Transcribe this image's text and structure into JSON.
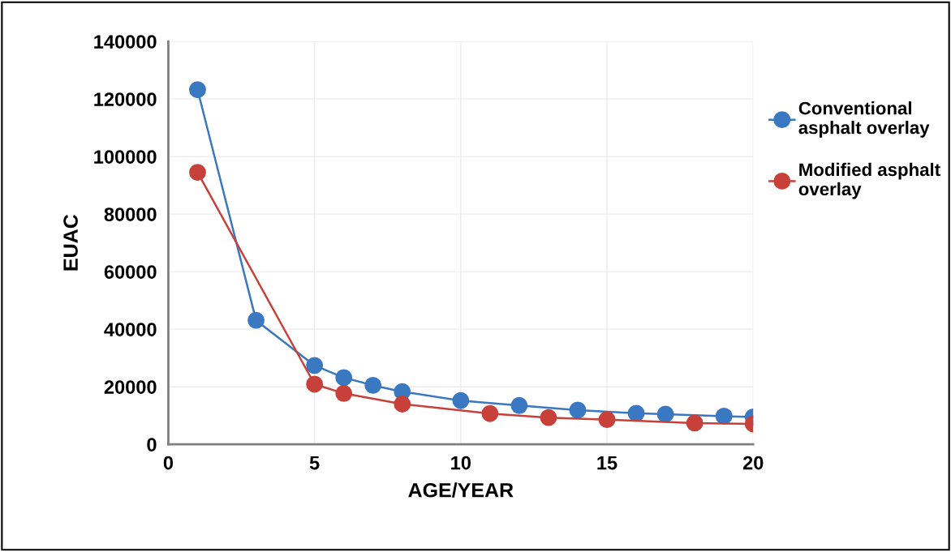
{
  "chart_data": {
    "type": "line",
    "xlabel": "AGE/YEAR",
    "ylabel": "EUAC",
    "xlim": [
      0,
      20
    ],
    "xticks": [
      0,
      5,
      10,
      15,
      20
    ],
    "ylim": [
      0,
      140000
    ],
    "yticks": [
      0,
      20000,
      40000,
      60000,
      80000,
      100000,
      120000,
      140000
    ],
    "grid": true,
    "legend": "right",
    "marker": "circle",
    "line_style": "solid",
    "series": [
      {
        "name": "Conventional\nasphalt overlay",
        "color": "#3a78c2",
        "x": [
          1,
          3,
          5,
          6,
          7,
          8,
          10,
          12,
          14,
          16,
          17,
          19,
          20
        ],
        "values": [
          123200,
          43100,
          27400,
          23200,
          20500,
          18300,
          15200,
          13500,
          11900,
          10800,
          10500,
          9800,
          9500
        ]
      },
      {
        "name": "Modified asphalt\noverlay",
        "color": "#c8403a",
        "x": [
          1,
          5,
          6,
          8,
          11,
          13,
          15,
          18,
          20
        ],
        "values": [
          94500,
          20900,
          17700,
          14000,
          10700,
          9300,
          8600,
          7400,
          7100
        ]
      }
    ]
  }
}
